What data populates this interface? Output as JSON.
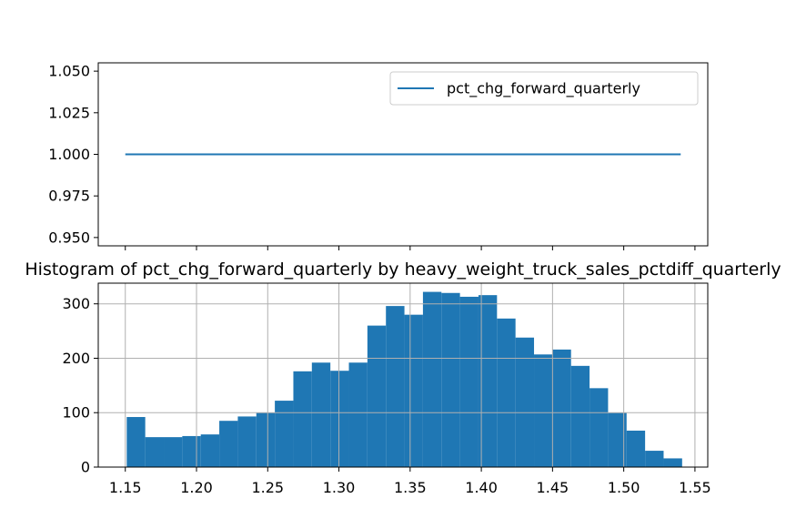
{
  "chart_data": [
    {
      "type": "line",
      "title": "",
      "xlabel": "",
      "ylabel": "",
      "x_range": [
        1.15,
        1.54
      ],
      "ylim": [
        0.945,
        1.055
      ],
      "yticks": [
        "0.950",
        "0.975",
        "1.000",
        "1.025",
        "1.050"
      ],
      "grid": false,
      "legend_position": "upper-right",
      "series": [
        {
          "name": "pct_chg_forward_quarterly",
          "color": "#1f77b4",
          "x": [
            1.15,
            1.54
          ],
          "values": [
            1.0,
            1.0
          ]
        }
      ]
    },
    {
      "type": "bar",
      "title": "Histogram of pct_chg_forward_quarterly by heavy_weight_truck_sales_pctdiff_quarterly",
      "xlabel": "",
      "ylabel": "",
      "xlim": [
        1.131,
        1.559
      ],
      "ylim": [
        0,
        338
      ],
      "xticks": [
        "1.15",
        "1.20",
        "1.25",
        "1.30",
        "1.35",
        "1.40",
        "1.45",
        "1.50",
        "1.55"
      ],
      "yticks": [
        "0",
        "100",
        "200",
        "300"
      ],
      "grid": true,
      "color": "#1f77b4",
      "bin_start": 1.151,
      "bin_end": 1.541,
      "values": [
        92,
        55,
        55,
        57,
        60,
        85,
        93,
        100,
        122,
        176,
        192,
        177,
        192,
        260,
        296,
        280,
        322,
        320,
        313,
        316,
        273,
        238,
        207,
        216,
        186,
        145,
        100,
        67,
        30,
        16
      ]
    }
  ]
}
